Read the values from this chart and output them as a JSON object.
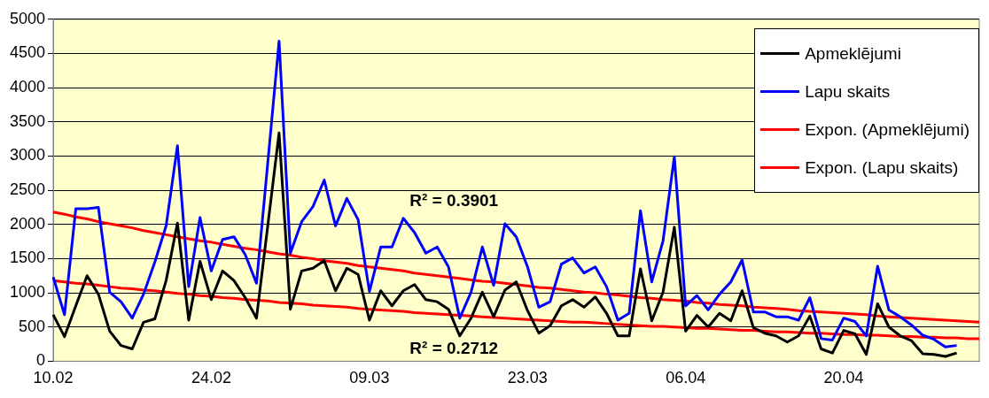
{
  "chart_data": {
    "type": "line",
    "categories": [
      "10.02",
      null,
      null,
      null,
      null,
      null,
      null,
      null,
      null,
      null,
      null,
      null,
      null,
      null,
      "24.02",
      null,
      null,
      null,
      null,
      null,
      null,
      null,
      null,
      null,
      null,
      null,
      null,
      null,
      "09.03",
      null,
      null,
      null,
      null,
      null,
      null,
      null,
      null,
      null,
      null,
      null,
      null,
      null,
      "23.03",
      null,
      null,
      null,
      null,
      null,
      null,
      null,
      null,
      null,
      null,
      null,
      null,
      null,
      "06.04",
      null,
      null,
      null,
      null,
      null,
      null,
      null,
      null,
      null,
      null,
      null,
      null,
      null,
      "20.04",
      null,
      null,
      null,
      null,
      null,
      null,
      null,
      null,
      null,
      null,
      null,
      null
    ],
    "series": [
      {
        "name": "Apmeklējumi",
        "color": "#000000",
        "values": [
          680,
          360,
          810,
          1250,
          980,
          440,
          230,
          180,
          570,
          620,
          1180,
          2020,
          600,
          1460,
          900,
          1320,
          1180,
          930,
          630,
          1980,
          3340,
          760,
          1320,
          1360,
          1470,
          1030,
          1360,
          1270,
          600,
          1030,
          810,
          1030,
          1120,
          900,
          870,
          760,
          370,
          630,
          1010,
          650,
          1040,
          1160,
          740,
          410,
          520,
          810,
          900,
          790,
          940,
          700,
          370,
          370,
          1350,
          590,
          1010,
          1960,
          440,
          670,
          500,
          700,
          590,
          1030,
          490,
          410,
          370,
          280,
          370,
          660,
          180,
          120,
          450,
          400,
          100,
          840,
          500,
          370,
          300,
          110,
          100,
          70,
          120,
          null,
          null
        ]
      },
      {
        "name": "Lapu skaits",
        "color": "#0000ff",
        "values": [
          1230,
          680,
          2230,
          2230,
          2250,
          1010,
          870,
          630,
          980,
          1450,
          1980,
          3150,
          1090,
          2100,
          1320,
          1780,
          1820,
          1560,
          1140,
          2900,
          4680,
          1580,
          2040,
          2260,
          2650,
          1980,
          2380,
          2070,
          1020,
          1670,
          1670,
          2090,
          1880,
          1580,
          1670,
          1380,
          630,
          1010,
          1670,
          1110,
          2010,
          1820,
          1380,
          790,
          870,
          1420,
          1510,
          1290,
          1380,
          1090,
          600,
          700,
          2200,
          1160,
          1760,
          2990,
          810,
          960,
          750,
          980,
          1160,
          1480,
          720,
          720,
          650,
          650,
          600,
          930,
          330,
          310,
          630,
          580,
          370,
          1390,
          750,
          650,
          530,
          380,
          320,
          210,
          230,
          null,
          null
        ]
      },
      {
        "name": "Expon. (Apmeklējumi)",
        "color": "#ff0000",
        "values": [
          1180,
          1160,
          1140,
          1130,
          1110,
          1090,
          1070,
          1060,
          1040,
          1030,
          1010,
          990,
          980,
          960,
          950,
          930,
          920,
          900,
          890,
          880,
          860,
          850,
          840,
          820,
          810,
          800,
          790,
          770,
          760,
          750,
          740,
          730,
          710,
          700,
          690,
          680,
          670,
          660,
          650,
          640,
          630,
          620,
          610,
          600,
          590,
          580,
          570,
          570,
          560,
          550,
          540,
          530,
          520,
          510,
          510,
          500,
          490,
          480,
          480,
          470,
          460,
          450,
          450,
          440,
          430,
          430,
          420,
          410,
          410,
          400,
          390,
          390,
          380,
          380,
          370,
          360,
          360,
          350,
          350,
          340,
          340,
          330,
          330
        ]
      },
      {
        "name": "Expon. (Lapu skaits)",
        "color": "#ff0000",
        "values": [
          2180,
          2150,
          2110,
          2080,
          2040,
          2010,
          1980,
          1950,
          1910,
          1880,
          1850,
          1820,
          1790,
          1760,
          1740,
          1710,
          1680,
          1650,
          1630,
          1600,
          1570,
          1550,
          1520,
          1500,
          1470,
          1450,
          1430,
          1400,
          1380,
          1360,
          1340,
          1320,
          1290,
          1270,
          1250,
          1230,
          1210,
          1190,
          1170,
          1160,
          1140,
          1120,
          1100,
          1080,
          1070,
          1050,
          1030,
          1010,
          1000,
          980,
          970,
          950,
          930,
          920,
          900,
          890,
          880,
          860,
          850,
          830,
          820,
          810,
          790,
          780,
          770,
          760,
          740,
          730,
          720,
          710,
          700,
          690,
          680,
          660,
          650,
          640,
          630,
          620,
          610,
          600,
          590,
          580,
          570
        ]
      }
    ],
    "ylim": [
      0,
      5000
    ],
    "yticks": [
      0,
      500,
      1000,
      1500,
      2000,
      2500,
      3000,
      3500,
      4000,
      4500,
      5000
    ],
    "grid": "y",
    "legend": "top right",
    "marker": "none",
    "line_style": "solid",
    "annotations": [
      "R² = 0.3901",
      "R² = 0.2712"
    ]
  }
}
